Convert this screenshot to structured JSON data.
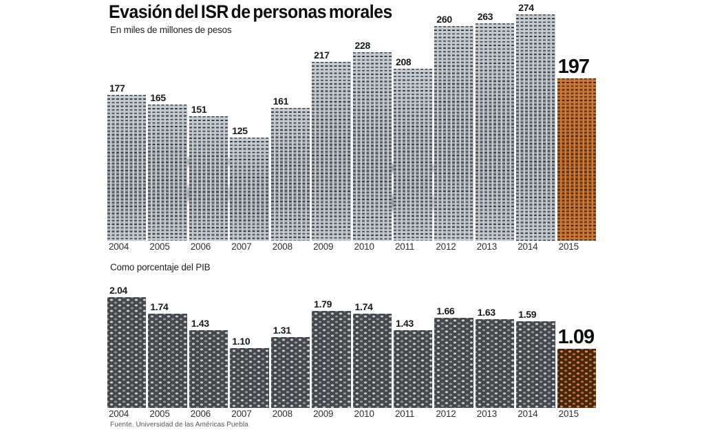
{
  "title": "Evasión del ISR de personas morales",
  "subtitle": "En miles de millones de pesos",
  "section2_label": "Como porcentaje del PIB",
  "source": "Fuente. Universidad de las Américas Puebla",
  "accent_color": "#cf7a36",
  "base_bar_color": "#c6cdd2",
  "chart_data": [
    {
      "type": "bar",
      "title": "Evasión del ISR de personas morales",
      "subtitle": "En miles de millones de pesos",
      "ylabel": "miles de millones de pesos",
      "categories": [
        "2004",
        "2005",
        "2006",
        "2007",
        "2008",
        "2009",
        "2010",
        "2011",
        "2012",
        "2013",
        "2014",
        "2015"
      ],
      "values": [
        177,
        165,
        151,
        125,
        161,
        217,
        228,
        208,
        260,
        263,
        274,
        197
      ],
      "value_labels": [
        "177",
        "165",
        "151",
        "125",
        "161",
        "217",
        "228",
        "208",
        "260",
        "263",
        "274",
        "197"
      ],
      "highlight_index": 11,
      "highlight_color": "#cf7a36",
      "ylim": [
        0,
        290
      ],
      "grid": false,
      "legend": "none",
      "texture": "banknote-engraving-light"
    },
    {
      "type": "bar",
      "title": "Como porcentaje del PIB",
      "ylabel": "% del PIB",
      "categories": [
        "2004",
        "2005",
        "2006",
        "2007",
        "2008",
        "2009",
        "2010",
        "2011",
        "2012",
        "2013",
        "2014",
        "2015"
      ],
      "values": [
        2.04,
        1.74,
        1.43,
        1.1,
        1.31,
        1.79,
        1.74,
        1.43,
        1.66,
        1.63,
        1.59,
        1.09
      ],
      "value_labels": [
        "2.04",
        "1.74",
        "1.43",
        "1.10",
        "1.31",
        "1.79",
        "1.74",
        "1.43",
        "1.66",
        "1.63",
        "1.59",
        "1.09"
      ],
      "highlight_index": 11,
      "highlight_color": "#cf7a36",
      "ylim": [
        0,
        2.2
      ],
      "grid": false,
      "legend": "none",
      "texture": "banknote-guilloche-dark"
    }
  ]
}
